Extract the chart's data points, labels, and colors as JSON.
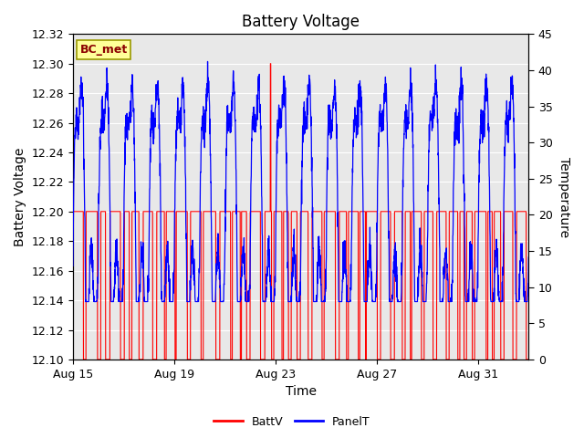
{
  "title": "Battery Voltage",
  "xlabel": "Time",
  "ylabel_left": "Battery Voltage",
  "ylabel_right": "Temperature",
  "ylim_left": [
    12.1,
    12.32
  ],
  "ylim_right": [
    0,
    45
  ],
  "yticks_left": [
    12.1,
    12.12,
    12.14,
    12.16,
    12.18,
    12.2,
    12.22,
    12.24,
    12.26,
    12.28,
    12.3,
    12.32
  ],
  "yticks_right": [
    0,
    5,
    10,
    15,
    20,
    25,
    30,
    35,
    40,
    45
  ],
  "total_days": 18,
  "xtick_offsets": [
    0,
    4,
    8,
    12,
    16
  ],
  "xtick_labels": [
    "Aug 15",
    "Aug 19",
    "Aug 23",
    "Aug 27",
    "Aug 31"
  ],
  "legend_items": [
    "BattV",
    "PanelT"
  ],
  "legend_colors": [
    "#ff0000",
    "#0000ff"
  ],
  "annotation_text": "BC_met",
  "annotation_bg": "#ffff99",
  "annotation_border": "#999900",
  "bg_color": "#e8e8e8",
  "grid_color": "#ffffff",
  "batt_color": "#ff0000",
  "panel_color": "#0000ff",
  "title_fontsize": 12,
  "axis_fontsize": 10,
  "tick_fontsize": 9,
  "points_per_day": 144
}
